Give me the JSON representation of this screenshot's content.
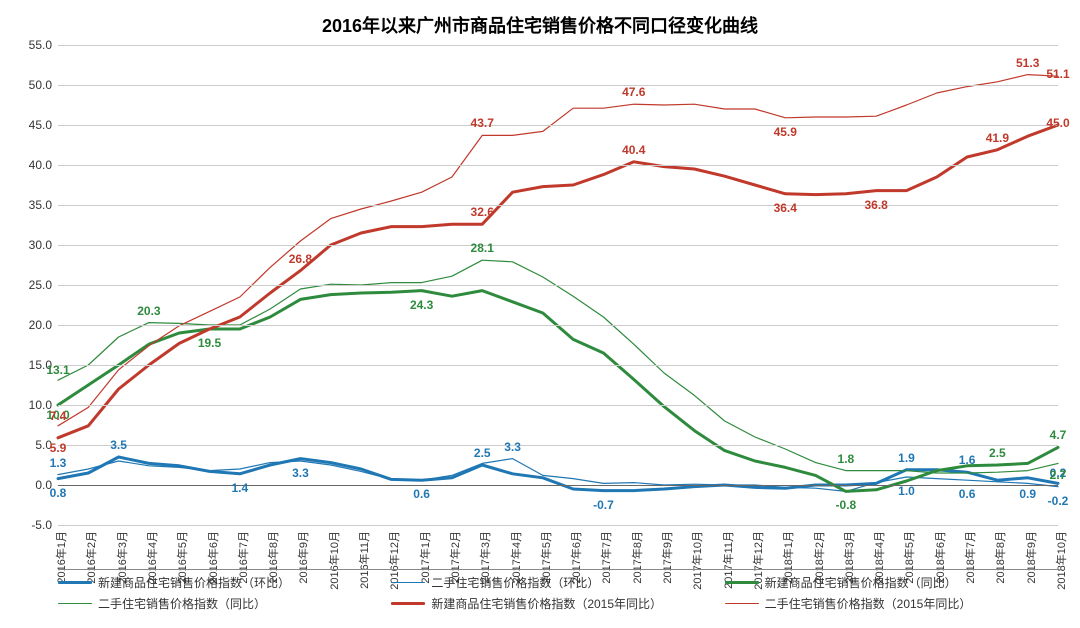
{
  "chart": {
    "title": "2016年以来广州市商品住宅销售价格不同口径变化曲线",
    "title_fontsize": 18,
    "background_color": "#ffffff",
    "grid_color": "#cccccc",
    "axis_color": "#666666",
    "ylim": [
      -5.0,
      55.0
    ],
    "ytick_step": 5.0,
    "yticks": [
      -5.0,
      0.0,
      5.0,
      10.0,
      15.0,
      20.0,
      25.0,
      30.0,
      35.0,
      40.0,
      45.0,
      50.0,
      55.0
    ],
    "x_labels": [
      "2016年1月",
      "2016年2月",
      "2016年3月",
      "2016年4月",
      "2016年5月",
      "2016年6月",
      "2016年7月",
      "2016年8月",
      "2016年9月",
      "2016年10月",
      "2016年11月",
      "2016年12月",
      "2017年1月",
      "2017年2月",
      "2017年3月",
      "2017年4月",
      "2017年5月",
      "2017年6月",
      "2017年7月",
      "2017年8月",
      "2017年9月",
      "2017年10月",
      "2017年11月",
      "2017年12月",
      "2018年1月",
      "2018年2月",
      "2018年3月",
      "2018年4月",
      "2018年5月",
      "2018年6月",
      "2018年7月",
      "2018年8月",
      "2018年9月",
      "2018年10月"
    ],
    "series": [
      {
        "name": "新建商品住宅销售价格指数（环比）",
        "color": "#1f77b4",
        "line_width": 3,
        "thin": false,
        "values": [
          0.8,
          1.5,
          3.5,
          2.7,
          2.4,
          1.7,
          1.4,
          2.5,
          3.3,
          2.8,
          2.0,
          0.7,
          0.6,
          0.9,
          2.5,
          1.4,
          0.9,
          -0.5,
          -0.7,
          -0.7,
          -0.5,
          -0.2,
          0.0,
          -0.3,
          -0.4,
          0.0,
          0.0,
          0.2,
          1.9,
          1.9,
          1.6,
          0.6,
          0.9,
          0.2
        ]
      },
      {
        "name": "二手住宅销售价格指数（环比）",
        "color": "#1f77b4",
        "line_width": 1.2,
        "thin": true,
        "values": [
          1.3,
          2.0,
          3.0,
          2.4,
          2.2,
          1.8,
          2.0,
          2.8,
          3.0,
          2.5,
          1.7,
          0.7,
          0.6,
          1.2,
          2.7,
          3.3,
          1.2,
          0.8,
          0.2,
          0.3,
          0.0,
          0.1,
          0.0,
          0.0,
          -0.3,
          -0.4,
          -0.8,
          0.3,
          1.0,
          0.8,
          0.6,
          0.4,
          0.2,
          -0.2
        ]
      },
      {
        "name": "新建商品住宅销售价格指数（同比）",
        "color": "#2e8b3d",
        "line_width": 3,
        "thin": false,
        "values": [
          10.0,
          12.5,
          15.0,
          17.6,
          19.0,
          19.5,
          19.5,
          21.0,
          23.2,
          23.8,
          24.0,
          24.1,
          24.3,
          23.6,
          24.3,
          22.9,
          21.5,
          18.2,
          16.5,
          13.2,
          9.8,
          6.8,
          4.3,
          3.0,
          2.2,
          1.2,
          -0.8,
          -0.6,
          0.5,
          1.8,
          2.4,
          2.5,
          2.7,
          4.7
        ]
      },
      {
        "name": "二手住宅销售价格指数（同比）",
        "color": "#2e8b3d",
        "line_width": 1.2,
        "thin": true,
        "values": [
          13.1,
          15.0,
          18.5,
          20.3,
          20.2,
          20.0,
          20.0,
          22.0,
          24.5,
          25.1,
          25.0,
          25.3,
          25.3,
          26.1,
          28.1,
          27.9,
          26.0,
          23.6,
          21.0,
          17.6,
          14.0,
          11.2,
          8.0,
          6.0,
          4.5,
          2.8,
          1.8,
          1.8,
          1.8,
          1.5,
          1.5,
          1.6,
          1.8,
          2.7
        ]
      },
      {
        "name": "新建商品住宅销售价格指数（2015年同比）",
        "color": "#c0392b",
        "line_width": 3,
        "thin": false,
        "values": [
          5.9,
          7.4,
          12.0,
          15.0,
          17.7,
          19.5,
          21.0,
          24.0,
          26.8,
          30.0,
          31.5,
          32.3,
          32.3,
          32.6,
          32.6,
          36.6,
          37.3,
          37.5,
          38.8,
          40.4,
          39.8,
          39.5,
          38.6,
          37.5,
          36.4,
          36.3,
          36.4,
          36.8,
          36.8,
          38.5,
          41.0,
          41.9,
          43.6,
          45.0
        ]
      },
      {
        "name": "二手住宅销售价格指数（2015年同比）",
        "color": "#c0392b",
        "line_width": 1.2,
        "thin": true,
        "values": [
          7.4,
          9.7,
          14.4,
          17.4,
          19.9,
          21.7,
          23.5,
          27.2,
          30.5,
          33.3,
          34.5,
          35.5,
          36.6,
          38.5,
          43.7,
          43.7,
          44.2,
          47.1,
          47.1,
          47.6,
          47.5,
          47.6,
          47.0,
          47.0,
          45.9,
          46.0,
          46.0,
          46.1,
          47.5,
          49.0,
          49.8,
          50.4,
          51.3,
          51.1
        ]
      }
    ],
    "data_labels": [
      {
        "series": 0,
        "idx": 0,
        "text": "0.8",
        "dy": 14,
        "color": "#1f77b4"
      },
      {
        "series": 1,
        "idx": 0,
        "text": "1.3",
        "dy": -12,
        "color": "#1f77b4"
      },
      {
        "series": 0,
        "idx": 2,
        "text": "3.5",
        "dy": -12,
        "color": "#1f77b4"
      },
      {
        "series": 0,
        "idx": 6,
        "text": "1.4",
        "dy": 14,
        "color": "#1f77b4"
      },
      {
        "series": 0,
        "idx": 8,
        "text": "3.3",
        "dy": 14,
        "color": "#1f77b4"
      },
      {
        "series": 0,
        "idx": 12,
        "text": "0.6",
        "dy": 14,
        "color": "#1f77b4"
      },
      {
        "series": 0,
        "idx": 14,
        "text": "2.5",
        "dy": -12,
        "color": "#1f77b4"
      },
      {
        "series": 1,
        "idx": 15,
        "text": "3.3",
        "dy": -12,
        "color": "#1f77b4"
      },
      {
        "series": 0,
        "idx": 18,
        "text": "-0.7",
        "dy": 14,
        "color": "#1f77b4"
      },
      {
        "series": 0,
        "idx": 28,
        "text": "1.9",
        "dy": -12,
        "color": "#1f77b4"
      },
      {
        "series": 0,
        "idx": 30,
        "text": "1.6",
        "dy": -12,
        "color": "#1f77b4"
      },
      {
        "series": 1,
        "idx": 28,
        "text": "1.0",
        "dy": 14,
        "color": "#1f77b4"
      },
      {
        "series": 1,
        "idx": 30,
        "text": "0.6",
        "dy": 14,
        "color": "#1f77b4"
      },
      {
        "series": 0,
        "idx": 32,
        "text": "0.9",
        "dy": 16,
        "color": "#1f77b4"
      },
      {
        "series": 0,
        "idx": 33,
        "text": "0.2",
        "dy": -10,
        "color": "#1f77b4"
      },
      {
        "series": 1,
        "idx": 33,
        "text": "-0.2",
        "dy": 14,
        "color": "#1f77b4"
      },
      {
        "series": 2,
        "idx": 0,
        "text": "10.0",
        "dy": 10,
        "color": "#2e8b3d"
      },
      {
        "series": 3,
        "idx": 0,
        "text": "13.1",
        "dy": -10,
        "color": "#2e8b3d"
      },
      {
        "series": 3,
        "idx": 3,
        "text": "20.3",
        "dy": -12,
        "color": "#2e8b3d"
      },
      {
        "series": 2,
        "idx": 5,
        "text": "19.5",
        "dy": 14,
        "color": "#2e8b3d"
      },
      {
        "series": 2,
        "idx": 12,
        "text": "24.3",
        "dy": 14,
        "color": "#2e8b3d"
      },
      {
        "series": 3,
        "idx": 14,
        "text": "28.1",
        "dy": -12,
        "color": "#2e8b3d"
      },
      {
        "series": 3,
        "idx": 26,
        "text": "1.8",
        "dy": -12,
        "color": "#2e8b3d"
      },
      {
        "series": 2,
        "idx": 26,
        "text": "-0.8",
        "dy": 14,
        "color": "#2e8b3d"
      },
      {
        "series": 2,
        "idx": 31,
        "text": "2.5",
        "dy": -12,
        "color": "#2e8b3d"
      },
      {
        "series": 2,
        "idx": 33,
        "text": "4.7",
        "dy": -12,
        "color": "#2e8b3d"
      },
      {
        "series": 3,
        "idx": 33,
        "text": "2.7",
        "dy": 12,
        "color": "#2e8b3d"
      },
      {
        "series": 4,
        "idx": 0,
        "text": "5.9",
        "dy": 10,
        "color": "#c0392b"
      },
      {
        "series": 5,
        "idx": 0,
        "text": "7.4",
        "dy": -10,
        "color": "#c0392b"
      },
      {
        "series": 4,
        "idx": 8,
        "text": "26.8",
        "dy": -12,
        "color": "#c0392b"
      },
      {
        "series": 4,
        "idx": 14,
        "text": "32.6",
        "dy": -12,
        "color": "#c0392b"
      },
      {
        "series": 5,
        "idx": 14,
        "text": "43.7",
        "dy": -12,
        "color": "#c0392b"
      },
      {
        "series": 4,
        "idx": 19,
        "text": "40.4",
        "dy": -12,
        "color": "#c0392b"
      },
      {
        "series": 5,
        "idx": 19,
        "text": "47.6",
        "dy": -12,
        "color": "#c0392b"
      },
      {
        "series": 4,
        "idx": 24,
        "text": "36.4",
        "dy": 14,
        "color": "#c0392b"
      },
      {
        "series": 5,
        "idx": 24,
        "text": "45.9",
        "dy": 14,
        "color": "#c0392b"
      },
      {
        "series": 4,
        "idx": 27,
        "text": "36.8",
        "dy": 14,
        "color": "#c0392b"
      },
      {
        "series": 4,
        "idx": 31,
        "text": "41.9",
        "dy": -12,
        "color": "#c0392b"
      },
      {
        "series": 5,
        "idx": 32,
        "text": "51.3",
        "dy": -12,
        "color": "#c0392b"
      },
      {
        "series": 4,
        "idx": 33,
        "text": "45.0",
        "dy": -2,
        "color": "#c0392b"
      },
      {
        "series": 5,
        "idx": 33,
        "text": "51.1",
        "dy": -2,
        "color": "#c0392b"
      }
    ],
    "legend": {
      "row1": [
        {
          "label": "新建商品住宅销售价格指数（环比）",
          "color": "#1f77b4",
          "thin": false
        },
        {
          "label": "二手住宅销售价格指数（环比）",
          "color": "#1f77b4",
          "thin": true
        },
        {
          "label": "新建商品住宅销售价格指数（同比）",
          "color": "#2e8b3d",
          "thin": false
        }
      ],
      "row2": [
        {
          "label": "二手住宅销售价格指数（同比）",
          "color": "#2e8b3d",
          "thin": true
        },
        {
          "label": "新建商品住宅销售价格指数（2015年同比）",
          "color": "#c0392b",
          "thin": false
        },
        {
          "label": "二手住宅销售价格指数（2015年同比）",
          "color": "#c0392b",
          "thin": true
        }
      ]
    }
  }
}
